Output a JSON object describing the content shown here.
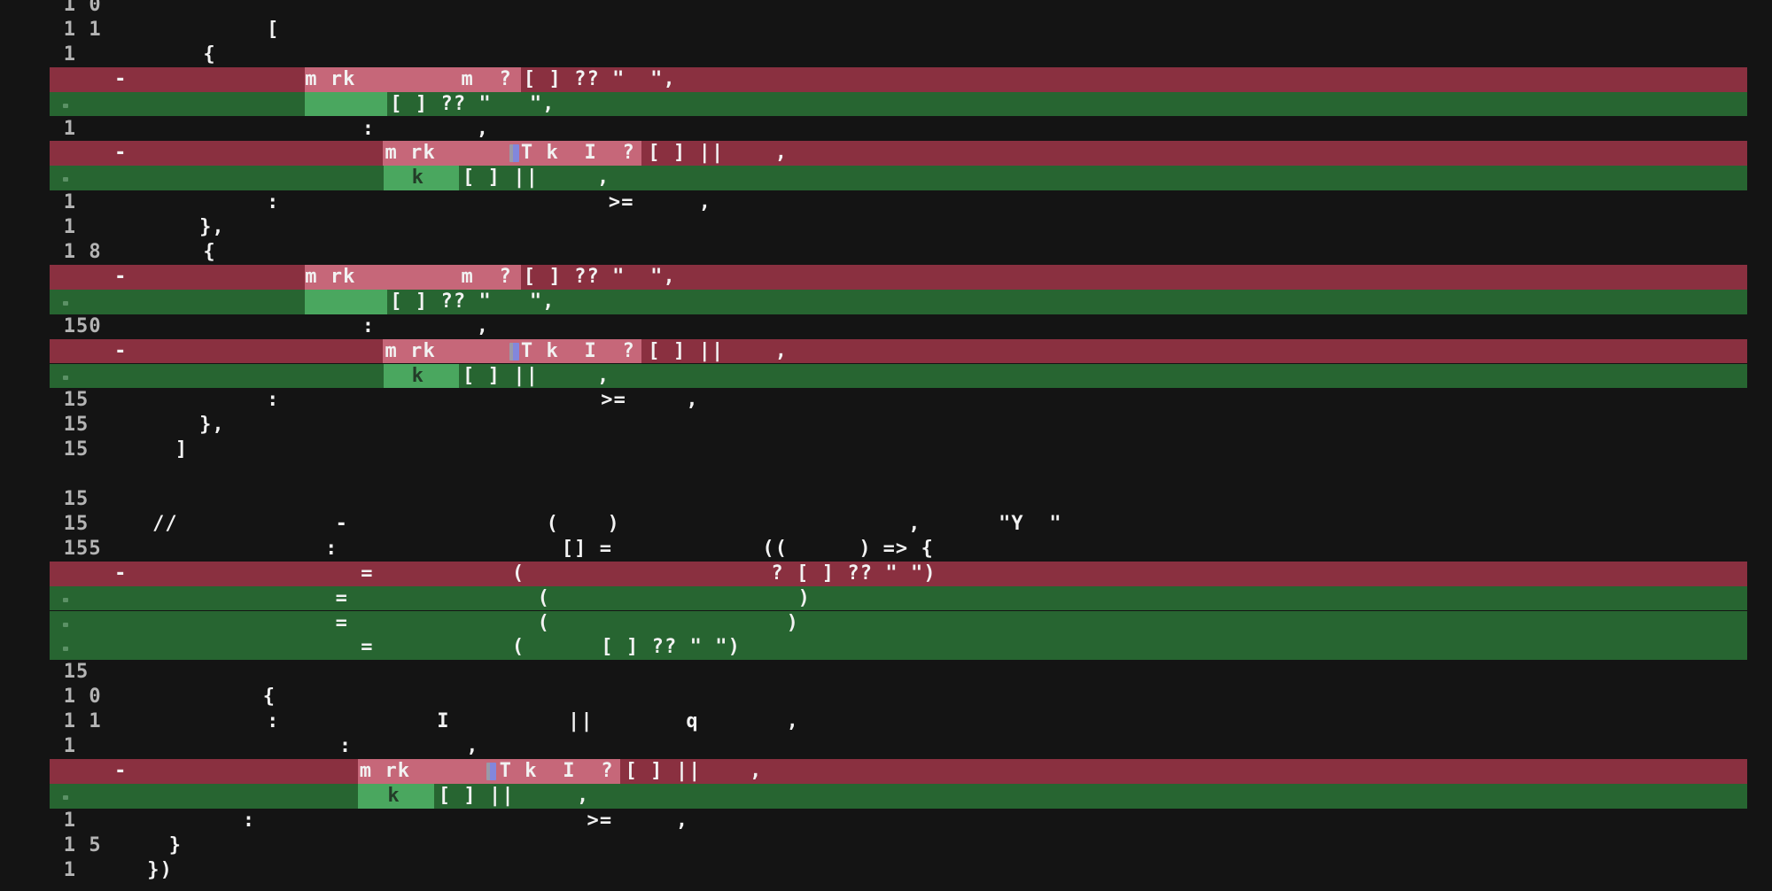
{
  "meta": {
    "description": "Dark terminal showing a unified code diff with removed (red) and added (green) lines, word-level change highlights, and a font with most glyphs missing so only fragments of text are visible"
  },
  "colors": {
    "background": "#141414",
    "removed_bg": "#8A3040",
    "removed_word_bg": "#C66779",
    "added_bg": "#276531",
    "added_word_bg": "#4AA75F",
    "text": "#F2F2F2",
    "line_number": "#B4B4B4",
    "dark_text_on_added_highlight": "#233C28",
    "stray_glyph_blue": "#8287DC"
  },
  "diff": {
    "removed_marker": "-",
    "rows": [
      {
        "type": "context",
        "num": "1 0",
        "runs": []
      },
      {
        "type": "context",
        "num": "1 1",
        "runs": [
          {
            "col": 21,
            "text": "["
          }
        ]
      },
      {
        "type": "context",
        "num": "1",
        "runs": [
          {
            "col": 16,
            "text": "{"
          }
        ]
      },
      {
        "type": "removed",
        "marker": true,
        "hl": [
          24,
          41
        ],
        "runs": [
          {
            "col": 24,
            "text": "m rk"
          },
          {
            "col": 36.3,
            "text": "m  ?"
          },
          {
            "col": 41.2,
            "text": "[ ] ?? \"  \","
          }
        ]
      },
      {
        "type": "added",
        "plus_dot": true,
        "hl": [
          24,
          30.5
        ],
        "runs": [
          {
            "col": 30.7,
            "text": "[ ] ?? \"   \","
          }
        ]
      },
      {
        "type": "context",
        "num": "1",
        "runs": [
          {
            "col": 28.5,
            "text": ":"
          },
          {
            "col": 37.5,
            "text": ","
          }
        ]
      },
      {
        "type": "removed",
        "marker": true,
        "hl": [
          30.1,
          50.5
        ],
        "blue": 40.1,
        "runs": [
          {
            "col": 30.3,
            "text": "m rk"
          },
          {
            "col": 41,
            "text": "T k  I  ?"
          },
          {
            "col": 51,
            "text": "[ ] ||"
          },
          {
            "col": 61,
            "text": ","
          }
        ]
      },
      {
        "type": "added",
        "plus_dot": true,
        "hl": [
          30.2,
          36.1
        ],
        "runs": [
          {
            "col": 32.4,
            "text": "k",
            "tone": "dark"
          },
          {
            "col": 36.4,
            "text": "[ ] ||"
          },
          {
            "col": 47,
            "text": ","
          }
        ]
      },
      {
        "type": "context",
        "num": "1",
        "runs": [
          {
            "col": 21,
            "text": ":"
          },
          {
            "col": 47.9,
            "text": ">="
          },
          {
            "col": 55,
            "text": ","
          }
        ]
      },
      {
        "type": "context",
        "num": "1",
        "runs": [
          {
            "col": 15.7,
            "text": "},"
          }
        ]
      },
      {
        "type": "context",
        "num": "1 8",
        "runs": [
          {
            "col": 16,
            "text": "{"
          }
        ]
      },
      {
        "type": "removed",
        "marker": true,
        "hl": [
          24,
          41
        ],
        "runs": [
          {
            "col": 24,
            "text": "m rk"
          },
          {
            "col": 36.3,
            "text": "m  ?"
          },
          {
            "col": 41.2,
            "text": "[ ] ?? \"  \","
          }
        ]
      },
      {
        "type": "added",
        "plus_dot": true,
        "hl": [
          24,
          30.5
        ],
        "runs": [
          {
            "col": 30.7,
            "text": "[ ] ?? \"   \","
          }
        ]
      },
      {
        "type": "context",
        "num": "150",
        "runs": [
          {
            "col": 28.5,
            "text": ":"
          },
          {
            "col": 37.5,
            "text": ","
          }
        ]
      },
      {
        "type": "removed",
        "marker": true,
        "hl": [
          30.1,
          50.5
        ],
        "blue": 40.1,
        "runs": [
          {
            "col": 30.3,
            "text": "m rk"
          },
          {
            "col": 41,
            "text": "T k  I  ?"
          },
          {
            "col": 51,
            "text": "[ ] ||"
          },
          {
            "col": 61,
            "text": ","
          }
        ]
      },
      {
        "type": "added",
        "plus_dot": true,
        "hl": [
          30.2,
          36.1
        ],
        "runs": [
          {
            "col": 32.4,
            "text": "k",
            "tone": "dark"
          },
          {
            "col": 36.4,
            "text": "[ ] ||"
          },
          {
            "col": 47,
            "text": ","
          }
        ]
      },
      {
        "type": "context",
        "num": "15",
        "runs": [
          {
            "col": 21,
            "text": ":"
          },
          {
            "col": 47.3,
            "text": ">="
          },
          {
            "col": 54,
            "text": ","
          }
        ]
      },
      {
        "type": "context",
        "num": "15",
        "runs": [
          {
            "col": 15.7,
            "text": "},"
          }
        ]
      },
      {
        "type": "context",
        "num": "15",
        "runs": [
          {
            "col": 13.8,
            "text": "]"
          }
        ]
      },
      {
        "type": "blank",
        "runs": []
      },
      {
        "type": "context",
        "num": "15",
        "runs": []
      },
      {
        "type": "context",
        "num": "15",
        "runs": [
          {
            "col": 12,
            "text": "//"
          },
          {
            "col": 26.4,
            "text": "-"
          },
          {
            "col": 43,
            "text": "("
          },
          {
            "col": 47.8,
            "text": ")"
          },
          {
            "col": 71.5,
            "text": ","
          },
          {
            "col": 78.6,
            "text": "\"Y  \""
          }
        ]
      },
      {
        "type": "context",
        "num": "155",
        "runs": [
          {
            "col": 25.6,
            "text": ":"
          },
          {
            "col": 44.2,
            "text": "[] ="
          },
          {
            "col": 60,
            "text": "(("
          },
          {
            "col": 67.6,
            "text": ")"
          },
          {
            "col": 69.5,
            "text": "=> {"
          }
        ]
      },
      {
        "type": "removed",
        "marker": true,
        "runs": [
          {
            "col": 28.4,
            "text": "="
          },
          {
            "col": 40.3,
            "text": "("
          },
          {
            "col": 60.7,
            "text": "? [ ] ?? \" \")"
          }
        ]
      },
      {
        "type": "added",
        "plus_dot": true,
        "runs": [
          {
            "col": 26.4,
            "text": "="
          },
          {
            "col": 42.3,
            "text": "("
          },
          {
            "col": 62.8,
            "text": ")"
          }
        ]
      },
      {
        "type": "added",
        "plus_dot": true,
        "runs": [
          {
            "col": 26.4,
            "text": "="
          },
          {
            "col": 42.3,
            "text": "("
          },
          {
            "col": 61.9,
            "text": ")"
          }
        ]
      },
      {
        "type": "added",
        "plus_dot": true,
        "runs": [
          {
            "col": 28.4,
            "text": "="
          },
          {
            "col": 40.3,
            "text": "("
          },
          {
            "col": 47.3,
            "text": "[ ] ?? \" \")"
          }
        ]
      },
      {
        "type": "context",
        "num": "15",
        "runs": []
      },
      {
        "type": "context",
        "num": "1 0",
        "runs": [
          {
            "col": 20.7,
            "text": "{"
          }
        ]
      },
      {
        "type": "context",
        "num": "1 1",
        "runs": [
          {
            "col": 21,
            "text": ":"
          },
          {
            "col": 34.4,
            "text": "I"
          },
          {
            "col": 44.7,
            "text": "||"
          },
          {
            "col": 54,
            "text": "q"
          },
          {
            "col": 61.9,
            "text": ","
          }
        ]
      },
      {
        "type": "context",
        "num": "1",
        "runs": [
          {
            "col": 26.7,
            "text": ":"
          },
          {
            "col": 36.7,
            "text": ","
          }
        ]
      },
      {
        "type": "removed",
        "marker": true,
        "hl": [
          28.2,
          48.8
        ],
        "blue": 38.3,
        "runs": [
          {
            "col": 28.3,
            "text": "m rk"
          },
          {
            "col": 39.3,
            "text": "T k  I  ?"
          },
          {
            "col": 49.2,
            "text": "[ ] ||"
          },
          {
            "col": 59,
            "text": ","
          }
        ]
      },
      {
        "type": "added",
        "plus_dot": true,
        "hl": [
          28.2,
          34.2
        ],
        "runs": [
          {
            "col": 30.5,
            "text": "k",
            "tone": "dark"
          },
          {
            "col": 34.5,
            "text": "[ ] ||"
          },
          {
            "col": 45.4,
            "text": ","
          }
        ]
      },
      {
        "type": "context",
        "num": "1",
        "runs": [
          {
            "col": 19.1,
            "text": ":"
          },
          {
            "col": 46.2,
            "text": ">="
          },
          {
            "col": 53.2,
            "text": ","
          }
        ]
      },
      {
        "type": "context",
        "num": "1 5",
        "runs": [
          {
            "col": 13.3,
            "text": "}"
          }
        ]
      },
      {
        "type": "context",
        "num": "1",
        "runs": [
          {
            "col": 11.6,
            "text": "})"
          }
        ]
      }
    ]
  }
}
